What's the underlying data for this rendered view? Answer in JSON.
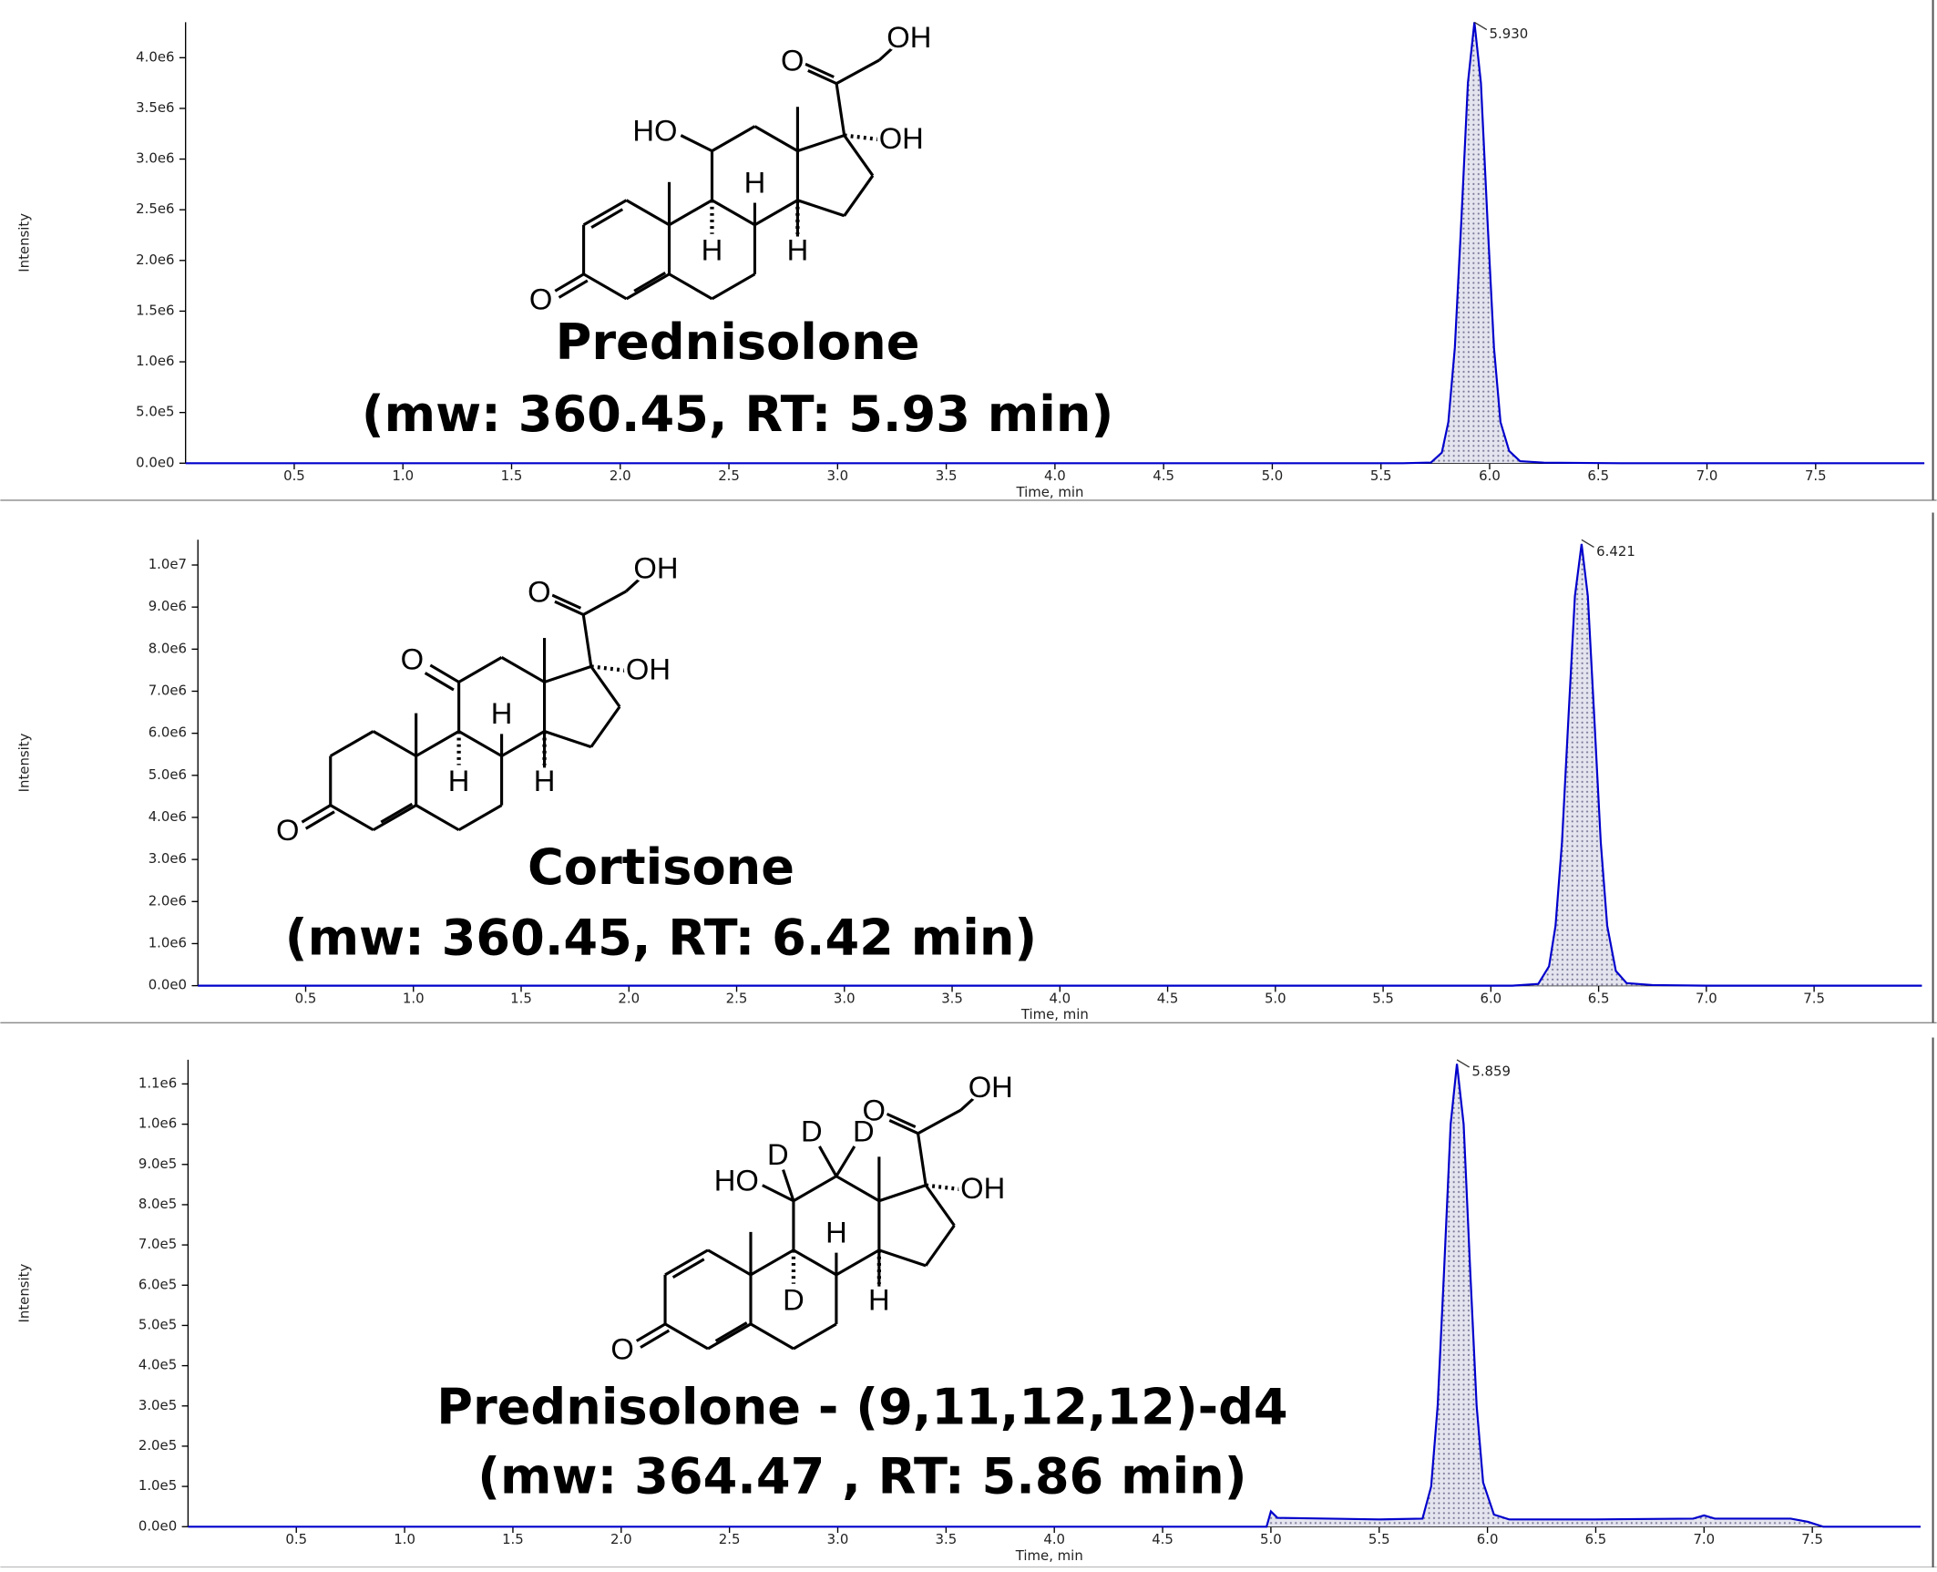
{
  "chart_data": [
    {
      "type": "line",
      "compound": "Prednisolone",
      "info": "(mw: 360.45, RT: 5.93 min)",
      "x_label": "Time, min",
      "y_label": "Intensity",
      "structure_labels": [
        "OH",
        "O",
        "OH",
        "HO",
        "H",
        "H",
        "H",
        "O"
      ],
      "peak": {
        "value": 5.93,
        "label": "5.930"
      },
      "color": "#0000cc",
      "x": [
        0,
        5.6,
        5.73,
        5.78,
        5.81,
        5.84,
        5.87,
        5.9,
        5.93,
        5.96,
        5.99,
        6.02,
        6.05,
        6.09,
        6.14,
        6.25,
        6.6,
        8.0
      ],
      "values": [
        0,
        0,
        6000,
        104000,
        405000,
        1140000,
        2400000,
        3750000,
        4350000,
        3750000,
        2400000,
        1140000,
        405000,
        120000,
        20000,
        5000,
        0,
        0
      ],
      "xlim": [
        0,
        8.0
      ],
      "xticks": [
        0.5,
        {
          "value": 1,
          "label": "1.0"
        },
        1.5,
        {
          "value": 2,
          "label": "2.0"
        },
        2.5,
        {
          "value": 3,
          "label": "3.0"
        },
        3.5,
        {
          "value": 4,
          "label": "4.0"
        },
        4.5,
        {
          "value": 5,
          "label": "5.0"
        },
        5.5,
        {
          "value": 6,
          "label": "6.0"
        },
        6.5,
        {
          "value": 7,
          "label": "7.0"
        },
        7.5
      ],
      "ylim": [
        0,
        4350000
      ],
      "yticks": [
        {
          "value": 0,
          "label": "0.0e0"
        },
        {
          "value": 500000,
          "label": "5.0e5"
        },
        {
          "value": 1000000,
          "label": "1.0e6"
        },
        {
          "value": 1500000,
          "label": "1.5e6"
        },
        {
          "value": 2000000,
          "label": "2.0e6"
        },
        {
          "value": 2500000,
          "label": "2.5e6"
        },
        {
          "value": 3000000,
          "label": "3.0e6"
        },
        {
          "value": 3500000,
          "label": "3.5e6"
        },
        {
          "value": 4000000,
          "label": "4.0e6"
        }
      ]
    },
    {
      "type": "line",
      "compound": "Cortisone",
      "info": "(mw: 360.45, RT: 6.42 min)",
      "x_label": "Time, min",
      "y_label": "Intensity",
      "structure_labels": [
        "OH",
        "O",
        "OH",
        "O",
        "H",
        "H",
        "H",
        "O"
      ],
      "peak": {
        "value": 6.421,
        "label": "6.421"
      },
      "color": "#0000cc",
      "x": [
        0,
        6.1,
        6.22,
        6.27,
        6.3,
        6.33,
        6.36,
        6.39,
        6.421,
        6.45,
        6.48,
        6.51,
        6.54,
        6.58,
        6.63,
        6.75,
        7.0,
        8.0
      ],
      "values": [
        0,
        0,
        42000,
        462000,
        1420000,
        3410000,
        6370000,
        9260000,
        10500000,
        9260000,
        6370000,
        3410000,
        1420000,
        350000,
        60000,
        15000,
        0,
        0
      ],
      "xlim": [
        0,
        8.0
      ],
      "xticks": [
        0.5,
        {
          "value": 1,
          "label": "1.0"
        },
        1.5,
        {
          "value": 2,
          "label": "2.0"
        },
        2.5,
        {
          "value": 3,
          "label": "3.0"
        },
        3.5,
        {
          "value": 4,
          "label": "4.0"
        },
        4.5,
        {
          "value": 5,
          "label": "5.0"
        },
        5.5,
        {
          "value": 6,
          "label": "6.0"
        },
        6.5,
        {
          "value": 7,
          "label": "7.0"
        },
        7.5
      ],
      "ylim": [
        0,
        10600000
      ],
      "yticks": [
        {
          "value": 0,
          "label": "0.0e0"
        },
        {
          "value": 1000000,
          "label": "1.0e6"
        },
        {
          "value": 2000000,
          "label": "2.0e6"
        },
        {
          "value": 3000000,
          "label": "3.0e6"
        },
        {
          "value": 4000000,
          "label": "4.0e6"
        },
        {
          "value": 5000000,
          "label": "5.0e6"
        },
        {
          "value": 6000000,
          "label": "6.0e6"
        },
        {
          "value": 7000000,
          "label": "7.0e6"
        },
        {
          "value": 8000000,
          "label": "8.0e6"
        },
        {
          "value": 9000000,
          "label": "9.0e6"
        },
        {
          "value": 10000000,
          "label": "1.0e7"
        }
      ]
    },
    {
      "type": "line",
      "compound": "Prednisolone - (9,11,12,12)-d4",
      "info": "(mw: 364.47 , RT: 5.86 min)",
      "x_label": "Time, min",
      "y_label": "Intensity",
      "structure_labels": [
        "OH",
        "O",
        "OH",
        "HO",
        "D",
        "D",
        "D",
        "D",
        "H",
        "H",
        "O"
      ],
      "peak": {
        "value": 5.859,
        "label": "5.859"
      },
      "color": "#0000cc",
      "x": [
        0,
        4.98,
        5.0,
        5.03,
        5.5,
        5.7,
        5.74,
        5.77,
        5.8,
        5.83,
        5.859,
        5.89,
        5.92,
        5.95,
        5.98,
        6.03,
        6.1,
        6.5,
        6.95,
        7.0,
        7.05,
        7.4,
        7.48,
        7.55,
        8.0
      ],
      "values": [
        0,
        0,
        38000,
        22000,
        18000,
        20000,
        100000,
        300000,
        640000,
        1000000,
        1150000,
        1000000,
        640000,
        300000,
        110000,
        30000,
        18000,
        18000,
        20000,
        28000,
        20000,
        20000,
        12000,
        0,
        0
      ],
      "xlim": [
        0,
        8.0
      ],
      "xticks": [
        0.5,
        {
          "value": 1,
          "label": "1.0"
        },
        1.5,
        {
          "value": 2,
          "label": "2.0"
        },
        2.5,
        {
          "value": 3,
          "label": "3.0"
        },
        3.5,
        {
          "value": 4,
          "label": "4.0"
        },
        4.5,
        {
          "value": 5,
          "label": "5.0"
        },
        5.5,
        {
          "value": 6,
          "label": "6.0"
        },
        6.5,
        {
          "value": 7,
          "label": "7.0"
        },
        7.5
      ],
      "ylim": [
        0,
        1160000
      ],
      "yticks": [
        {
          "value": 0,
          "label": "0.0e0"
        },
        {
          "value": 100000,
          "label": "1.0e5"
        },
        {
          "value": 200000,
          "label": "2.0e5"
        },
        {
          "value": 300000,
          "label": "3.0e5"
        },
        {
          "value": 400000,
          "label": "4.0e5"
        },
        {
          "value": 500000,
          "label": "5.0e5"
        },
        {
          "value": 600000,
          "label": "6.0e5"
        },
        {
          "value": 700000,
          "label": "7.0e5"
        },
        {
          "value": 800000,
          "label": "8.0e5"
        },
        {
          "value": 900000,
          "label": "9.0e5"
        },
        {
          "value": 1000000,
          "label": "1.0e6"
        },
        {
          "value": 1100000,
          "label": "1.1e6"
        }
      ]
    }
  ]
}
